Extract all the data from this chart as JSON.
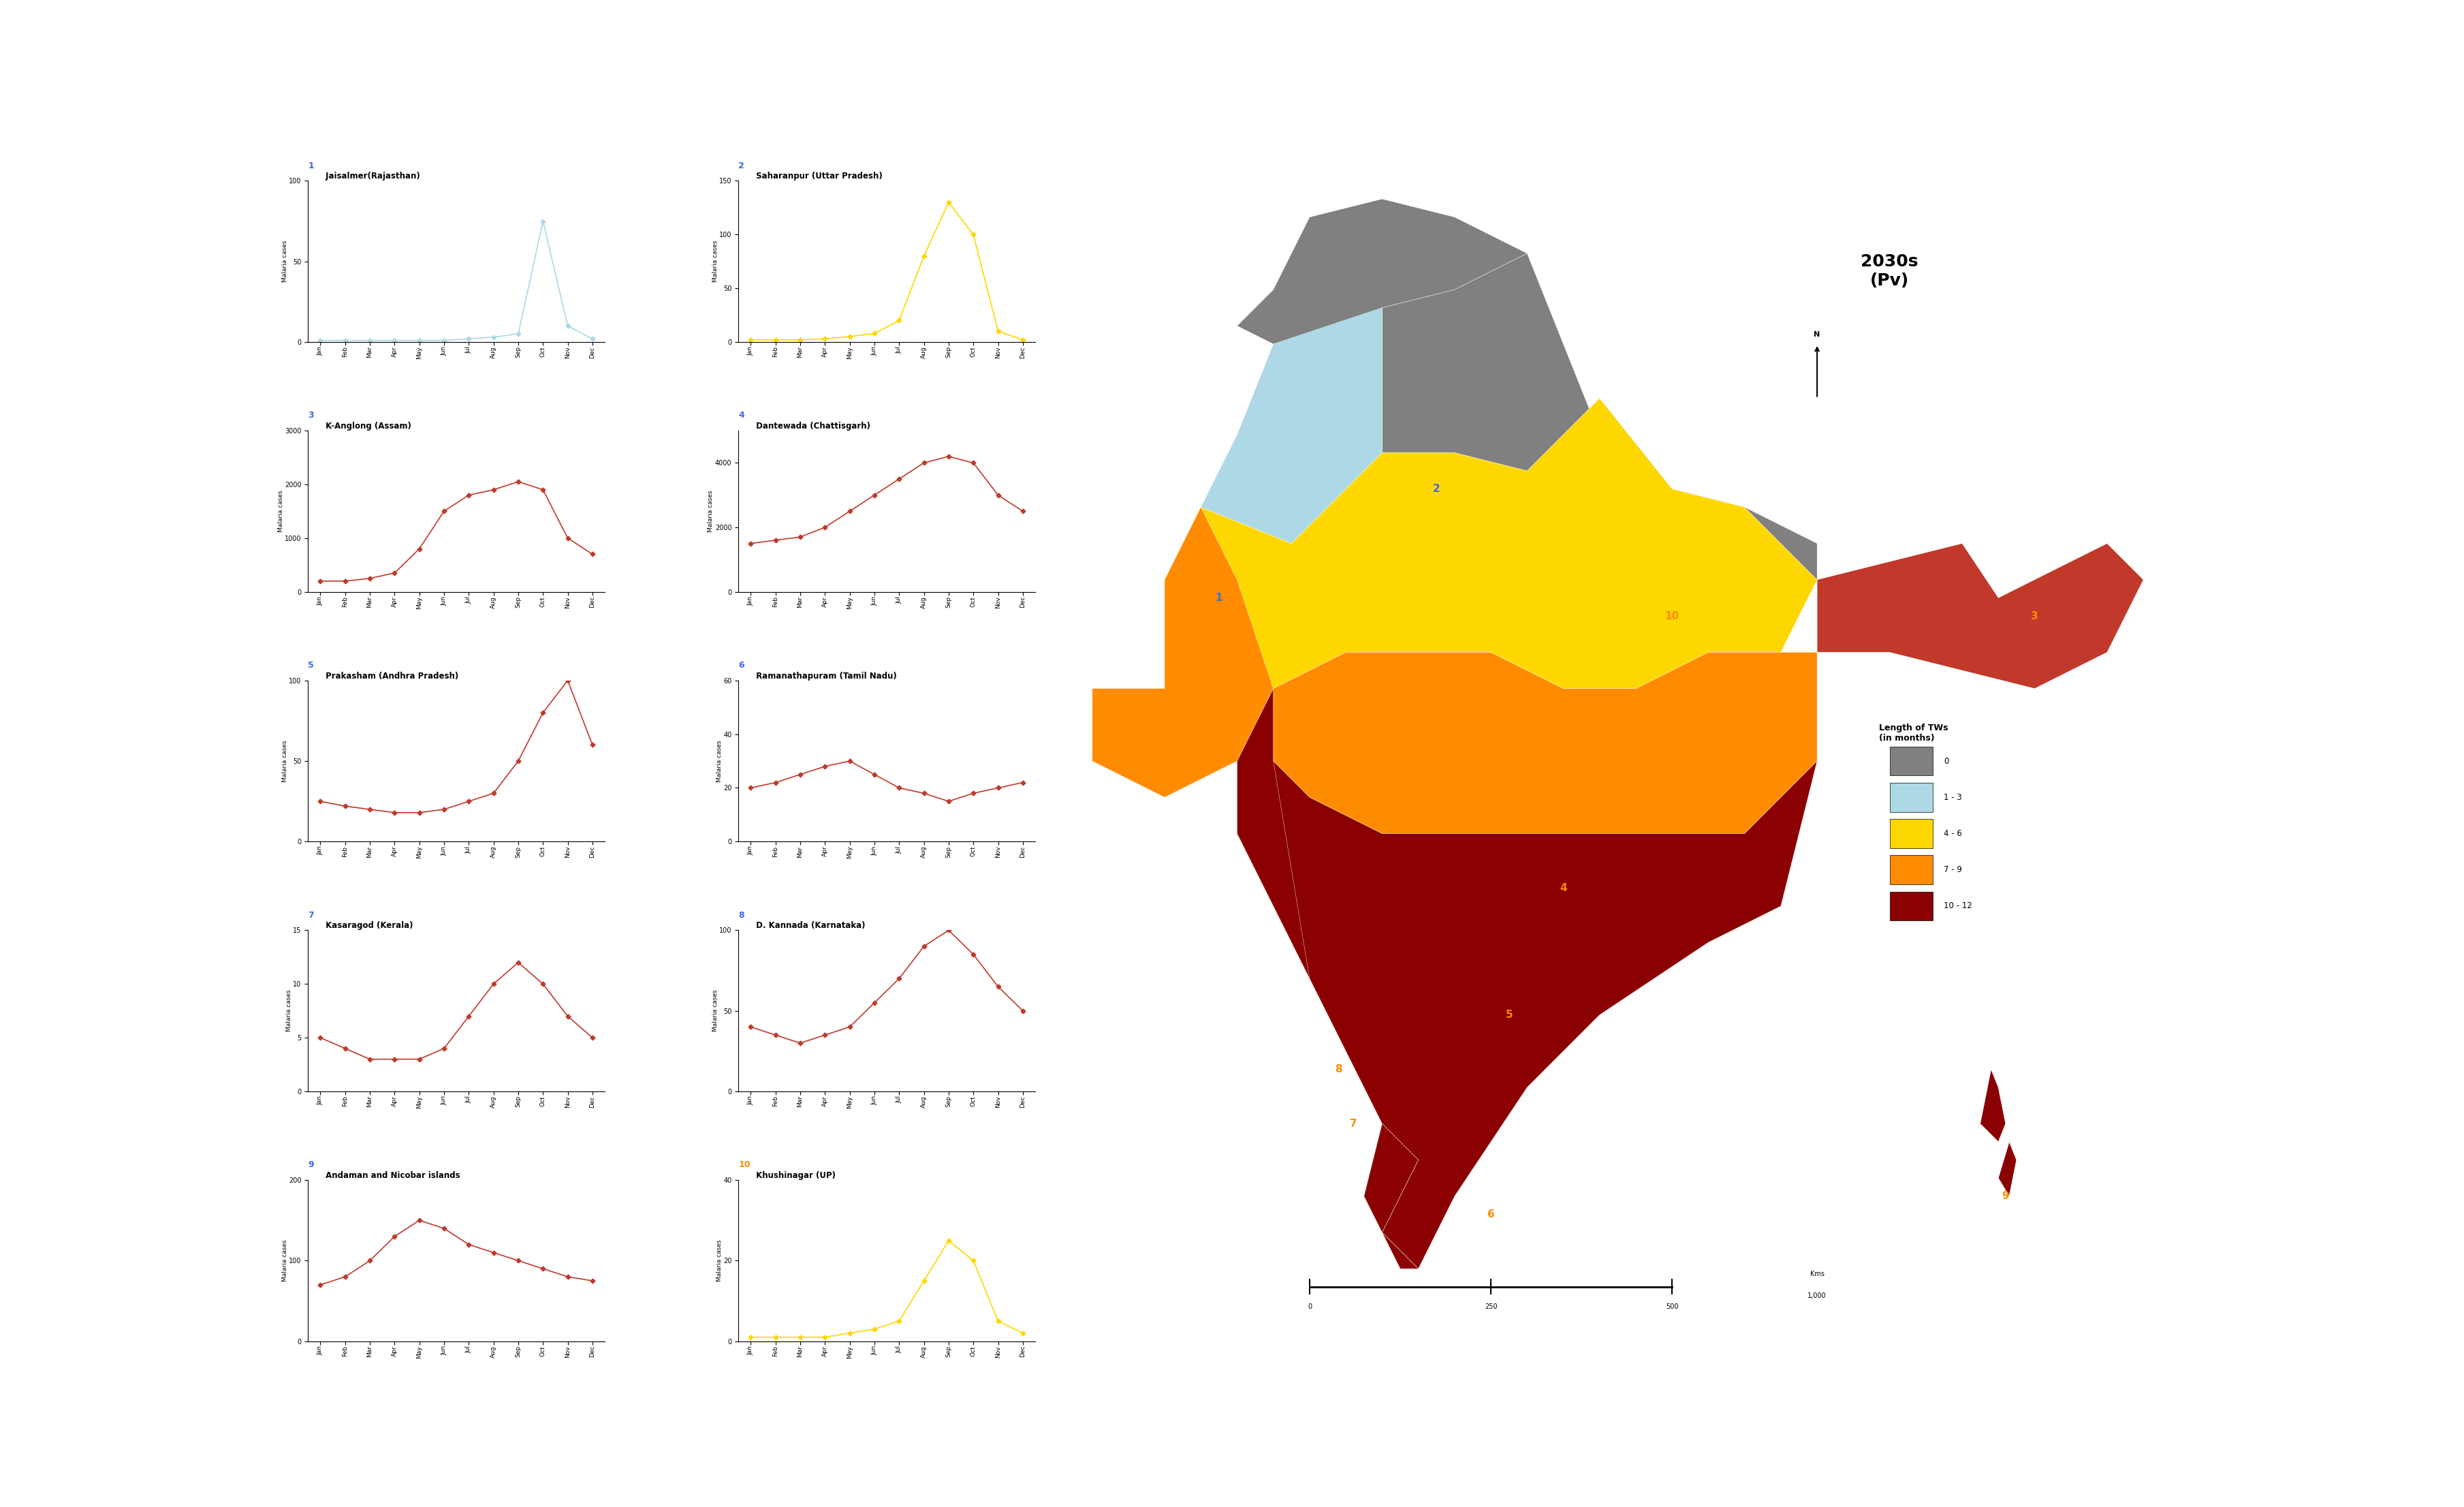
{
  "title_map": "2030s\n(Pv)",
  "months": [
    "Jan",
    "Feb",
    "Mar",
    "Apr",
    "May",
    "Jun",
    "Jul",
    "Aug",
    "Sep",
    "Oct",
    "Nov",
    "Dec"
  ],
  "plots": [
    {
      "num": "1",
      "title": "Jaisalmer(Rajasthan)",
      "color": "#add8e6",
      "marker_color": "#add8e6",
      "num_color": "#4169E1",
      "values": [
        1,
        1,
        1,
        1,
        1,
        1,
        2,
        3,
        5,
        75,
        10,
        2
      ],
      "ylim": [
        0,
        100
      ],
      "yticks": [
        0,
        50,
        100
      ]
    },
    {
      "num": "2",
      "title": "Saharanpur (Uttar Pradesh)",
      "color": "#FFD700",
      "marker_color": "#FFD700",
      "num_color": "#4169E1",
      "values": [
        2,
        2,
        2,
        3,
        5,
        8,
        20,
        80,
        130,
        100,
        10,
        2
      ],
      "ylim": [
        0,
        150
      ],
      "yticks": [
        0,
        50,
        100,
        150
      ]
    },
    {
      "num": "3",
      "title": "K-Anglong (Assam)",
      "color": "#c0392b",
      "marker_color": "#c0392b",
      "num_color": "#4169E1",
      "values": [
        200,
        200,
        250,
        350,
        800,
        1500,
        1800,
        1900,
        2050,
        1900,
        1000,
        700
      ],
      "ylim": [
        0,
        3000
      ],
      "yticks": [
        0,
        1000,
        2000,
        3000
      ]
    },
    {
      "num": "4",
      "title": "Dantewada (Chattisgarh)",
      "color": "#c0392b",
      "marker_color": "#c0392b",
      "num_color": "#4169E1",
      "values": [
        1500,
        1600,
        1700,
        2000,
        2500,
        3000,
        3500,
        4000,
        4200,
        4000,
        3000,
        2500
      ],
      "ylim": [
        0,
        5000
      ],
      "yticks": [
        0,
        2000,
        4000
      ]
    },
    {
      "num": "5",
      "title": "Prakasham (Andhra Pradesh)",
      "color": "#c0392b",
      "marker_color": "#c0392b",
      "num_color": "#4169E1",
      "values": [
        25,
        22,
        20,
        18,
        18,
        20,
        25,
        30,
        50,
        80,
        100,
        60
      ],
      "ylim": [
        0,
        100
      ],
      "yticks": [
        0,
        50,
        100
      ]
    },
    {
      "num": "6",
      "title": "Ramanathapuram (Tamil Nadu)",
      "color": "#c0392b",
      "marker_color": "#c0392b",
      "num_color": "#4169E1",
      "values": [
        20,
        22,
        25,
        28,
        30,
        25,
        20,
        18,
        15,
        18,
        20,
        22
      ],
      "ylim": [
        0,
        60
      ],
      "yticks": [
        0,
        20,
        40,
        60
      ]
    },
    {
      "num": "7",
      "title": "Kasaragod (Kerala)",
      "color": "#c0392b",
      "marker_color": "#c0392b",
      "num_color": "#4169E1",
      "values": [
        5,
        4,
        3,
        3,
        3,
        4,
        7,
        10,
        12,
        10,
        7,
        5
      ],
      "ylim": [
        0,
        15
      ],
      "yticks": [
        0,
        5,
        10,
        15
      ]
    },
    {
      "num": "8",
      "title": "D. Kannada (Karnataka)",
      "color": "#c0392b",
      "marker_color": "#c0392b",
      "num_color": "#4169E1",
      "values": [
        40,
        35,
        30,
        35,
        40,
        55,
        70,
        90,
        100,
        85,
        65,
        50
      ],
      "ylim": [
        0,
        100
      ],
      "yticks": [
        0,
        50,
        100
      ]
    },
    {
      "num": "9",
      "title": "Andaman and Nicobar islands",
      "color": "#c0392b",
      "marker_color": "#c0392b",
      "num_color": "#4169E1",
      "values": [
        70,
        80,
        100,
        130,
        150,
        140,
        120,
        110,
        100,
        90,
        80,
        75
      ],
      "ylim": [
        0,
        200
      ],
      "yticks": [
        0,
        100,
        200
      ]
    },
    {
      "num": "10",
      "title": "Khushinagar (UP)",
      "color": "#FFD700",
      "marker_color": "#FFD700",
      "num_color": "#FF8C00",
      "values": [
        1,
        1,
        1,
        1,
        2,
        3,
        5,
        15,
        25,
        20,
        5,
        2
      ],
      "ylim": [
        0,
        40
      ],
      "yticks": [
        0,
        20,
        40
      ]
    }
  ],
  "legend_colors": [
    "#808080",
    "#add8e6",
    "#FFD700",
    "#FF8C00",
    "#8B0000"
  ],
  "legend_labels": [
    "0",
    "1 - 3",
    "4 - 6",
    "7 - 9",
    "10 - 12"
  ],
  "legend_title": "Length of TWs\n(in months)",
  "bg_color": "#ffffff"
}
